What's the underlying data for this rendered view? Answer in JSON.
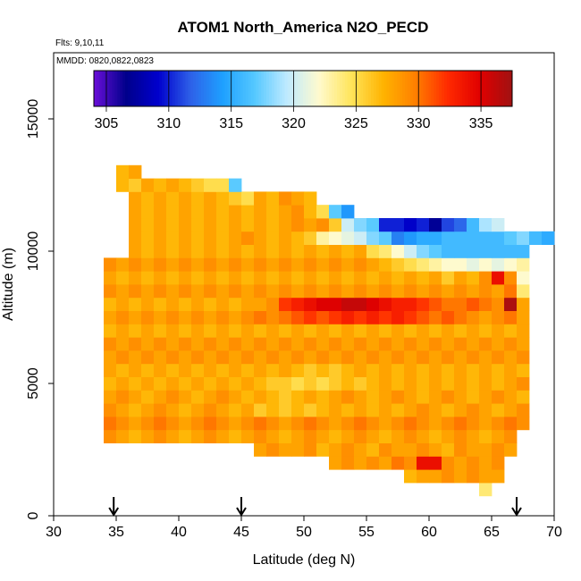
{
  "chart_data": {
    "type": "heatmap",
    "title": "ATOM1 North_America N2O_PECD",
    "annotations": {
      "flights": "Flts: 9,10,11",
      "dates": "MMDD: 0820,0822,0823"
    },
    "xlabel": "Latitude (deg N)",
    "ylabel": "Altitude (m)",
    "xlim": [
      30,
      70
    ],
    "ylim": [
      0,
      17500
    ],
    "xticks": [
      "30",
      "35",
      "40",
      "45",
      "50",
      "55",
      "60",
      "65",
      "70"
    ],
    "yticks": [
      "0",
      "5000",
      "10000",
      "15000"
    ],
    "colorbar": {
      "range": [
        304,
        337.5
      ],
      "ticks": [
        "305",
        "310",
        "315",
        "320",
        "325",
        "330",
        "335"
      ],
      "colors": [
        "#6a0fd8",
        "#00008b",
        "#0000cd",
        "#2e60e8",
        "#1ea0ff",
        "#55c8ff",
        "#bfeaff",
        "#fffacd",
        "#ffe45a",
        "#ffb300",
        "#ff7f00",
        "#ff2a00",
        "#e00000",
        "#a01212"
      ]
    },
    "bin_size": {
      "lat": 1,
      "alt": 500
    },
    "rows": [
      {
        "alt": 1000,
        "from": 64,
        "to": 65,
        "values": [
          324
        ]
      },
      {
        "alt": 1500,
        "from": 58,
        "to": 66,
        "values": [
          327,
          328,
          328,
          329,
          328,
          329,
          328,
          328
        ]
      },
      {
        "alt": 2000,
        "from": 52,
        "to": 66,
        "values": [
          328,
          329,
          328,
          329,
          328,
          330,
          329,
          334,
          334,
          329,
          328,
          329,
          328,
          329
        ]
      },
      {
        "alt": 2500,
        "from": 46,
        "to": 67,
        "values": [
          328,
          329,
          328,
          328,
          329,
          327,
          328,
          329,
          328,
          327,
          329,
          328,
          328,
          329,
          328,
          327,
          329,
          328,
          328,
          329,
          328
        ]
      },
      {
        "alt": 3000,
        "from": 34,
        "to": 67,
        "values": [
          329,
          328,
          327,
          328,
          329,
          328,
          327,
          328,
          329,
          328,
          327,
          328,
          329,
          328,
          327,
          328,
          329,
          328,
          327,
          328,
          329,
          328,
          327,
          328,
          329,
          328,
          327,
          328,
          329,
          328,
          327,
          328,
          329
        ]
      },
      {
        "alt": 3500,
        "from": 34,
        "to": 68,
        "values": [
          330,
          329,
          328,
          329,
          330,
          329,
          328,
          329,
          330,
          329,
          328,
          329,
          330,
          329,
          328,
          329,
          330,
          329,
          328,
          329,
          330,
          329,
          328,
          329,
          330,
          329,
          328,
          329,
          330,
          329,
          328,
          329,
          330,
          329
        ]
      },
      {
        "alt": 4000,
        "from": 34,
        "to": 68,
        "values": [
          329,
          328,
          327,
          328,
          329,
          328,
          327,
          328,
          329,
          328,
          327,
          328,
          326,
          327,
          326,
          327,
          326,
          327,
          328,
          327,
          328,
          327,
          328,
          327,
          328,
          329,
          328,
          327,
          328,
          329,
          328,
          327,
          328,
          329
        ]
      },
      {
        "alt": 4500,
        "from": 34,
        "to": 68,
        "values": [
          328,
          329,
          328,
          327,
          328,
          329,
          328,
          327,
          328,
          329,
          328,
          327,
          328,
          327,
          326,
          327,
          328,
          327,
          328,
          329,
          328,
          327,
          328,
          329,
          328,
          327,
          328,
          329,
          328,
          327,
          328,
          329,
          328,
          327
        ]
      },
      {
        "alt": 5000,
        "from": 34,
        "to": 68,
        "values": [
          327,
          328,
          327,
          328,
          327,
          328,
          327,
          328,
          327,
          328,
          327,
          328,
          327,
          326,
          326,
          325,
          326,
          325,
          326,
          327,
          326,
          327,
          328,
          327,
          328,
          327,
          328,
          327,
          328,
          327,
          328,
          327,
          328,
          329
        ]
      },
      {
        "alt": 5500,
        "from": 34,
        "to": 68,
        "values": [
          328,
          327,
          328,
          327,
          328,
          327,
          328,
          327,
          328,
          327,
          328,
          327,
          328,
          327,
          328,
          327,
          326,
          327,
          326,
          327,
          328,
          327,
          328,
          327,
          328,
          327,
          328,
          327,
          328,
          327,
          328,
          327,
          328,
          327
        ]
      },
      {
        "alt": 6000,
        "from": 34,
        "to": 68,
        "values": [
          328,
          329,
          328,
          329,
          328,
          329,
          328,
          329,
          328,
          329,
          328,
          329,
          328,
          329,
          328,
          329,
          328,
          329,
          328,
          329,
          328,
          329,
          328,
          329,
          328,
          329,
          328,
          329,
          328,
          329,
          328,
          329,
          328,
          329
        ]
      },
      {
        "alt": 6500,
        "from": 34,
        "to": 68,
        "values": [
          329,
          328,
          329,
          328,
          329,
          328,
          329,
          328,
          329,
          328,
          329,
          328,
          329,
          328,
          329,
          328,
          329,
          328,
          329,
          328,
          329,
          328,
          329,
          328,
          329,
          328,
          329,
          328,
          329,
          328,
          329,
          328,
          329,
          328
        ]
      },
      {
        "alt": 7000,
        "from": 34,
        "to": 68,
        "values": [
          327,
          328,
          327,
          328,
          327,
          328,
          327,
          328,
          327,
          328,
          327,
          328,
          327,
          328,
          327,
          328,
          327,
          328,
          327,
          328,
          327,
          328,
          327,
          328,
          327,
          328,
          327,
          328,
          327,
          328,
          327,
          328,
          327,
          328
        ]
      },
      {
        "alt": 7500,
        "from": 34,
        "to": 68,
        "values": [
          328,
          329,
          328,
          329,
          328,
          329,
          328,
          329,
          328,
          329,
          328,
          329,
          330,
          329,
          330,
          331,
          332,
          331,
          332,
          333,
          332,
          333,
          332,
          333,
          332,
          331,
          330,
          331,
          330,
          329,
          328,
          329,
          330,
          328
        ]
      },
      {
        "alt": 8000,
        "from": 34,
        "to": 68,
        "values": [
          327,
          328,
          327,
          328,
          327,
          328,
          327,
          328,
          327,
          328,
          327,
          328,
          328,
          329,
          332,
          333,
          334,
          335,
          335,
          336,
          336,
          335,
          334,
          333,
          333,
          332,
          331,
          330,
          330,
          331,
          330,
          329,
          337,
          328
        ]
      },
      {
        "alt": 8500,
        "from": 34,
        "to": 68,
        "values": [
          329,
          328,
          329,
          328,
          329,
          328,
          329,
          328,
          329,
          328,
          329,
          328,
          329,
          328,
          329,
          328,
          329,
          328,
          329,
          328,
          329,
          328,
          329,
          328,
          329,
          328,
          329,
          328,
          329,
          328,
          329,
          328,
          330,
          324
        ]
      },
      {
        "alt": 9000,
        "from": 34,
        "to": 68,
        "values": [
          328,
          327,
          328,
          327,
          328,
          327,
          328,
          327,
          328,
          327,
          328,
          327,
          328,
          327,
          328,
          327,
          328,
          327,
          328,
          327,
          328,
          327,
          328,
          327,
          328,
          327,
          328,
          326,
          328,
          327,
          329,
          334,
          329,
          322
        ]
      },
      {
        "alt": 9500,
        "from": 34,
        "to": 68,
        "values": [
          329,
          328,
          329,
          328,
          329,
          328,
          329,
          328,
          329,
          328,
          329,
          328,
          329,
          328,
          329,
          328,
          329,
          328,
          329,
          328,
          329,
          328,
          327,
          326,
          325,
          324,
          323,
          322,
          322,
          321,
          322,
          321,
          322,
          323
        ]
      },
      {
        "alt": 10000,
        "from": 36,
        "to": 68,
        "values": [
          328,
          327,
          328,
          327,
          328,
          327,
          328,
          327,
          328,
          327,
          328,
          327,
          328,
          327,
          328,
          327,
          328,
          327,
          328,
          325,
          324,
          322,
          320,
          318,
          317,
          316,
          316,
          316,
          316,
          316,
          316,
          316
        ]
      },
      {
        "alt": 10500,
        "from": 36,
        "to": 70,
        "values": [
          328,
          327,
          328,
          327,
          328,
          327,
          328,
          327,
          328,
          329,
          328,
          327,
          328,
          327,
          326,
          323,
          322,
          321,
          320,
          318,
          317,
          313,
          314,
          315,
          315,
          316,
          316,
          316,
          316,
          316,
          317,
          318,
          316,
          315
        ]
      },
      {
        "alt": 11000,
        "from": 36,
        "to": 66,
        "values": [
          328,
          327,
          328,
          327,
          328,
          327,
          328,
          327,
          328,
          327,
          328,
          327,
          328,
          329,
          328,
          329,
          326,
          320,
          318,
          317,
          310,
          310,
          309,
          310,
          307,
          311,
          312,
          316,
          319,
          320
        ]
      },
      {
        "alt": 11500,
        "from": 36,
        "to": 54,
        "values": [
          328,
          327,
          328,
          327,
          328,
          327,
          328,
          327,
          328,
          327,
          328,
          327,
          328,
          329,
          327,
          325,
          317,
          314
        ]
      },
      {
        "alt": 12000,
        "from": 36,
        "to": 51,
        "values": [
          328,
          327,
          328,
          327,
          328,
          327,
          328,
          327,
          326,
          325,
          328,
          327,
          329,
          328,
          327
        ]
      },
      {
        "alt": 12500,
        "from": 35,
        "to": 45,
        "values": [
          327,
          326,
          328,
          327,
          328,
          327,
          326,
          325,
          325,
          317
        ]
      },
      {
        "alt": 13000,
        "from": 35,
        "to": 37,
        "values": [
          327,
          328
        ]
      }
    ],
    "flight_markers_lat": [
      34.8,
      45,
      67
    ]
  }
}
